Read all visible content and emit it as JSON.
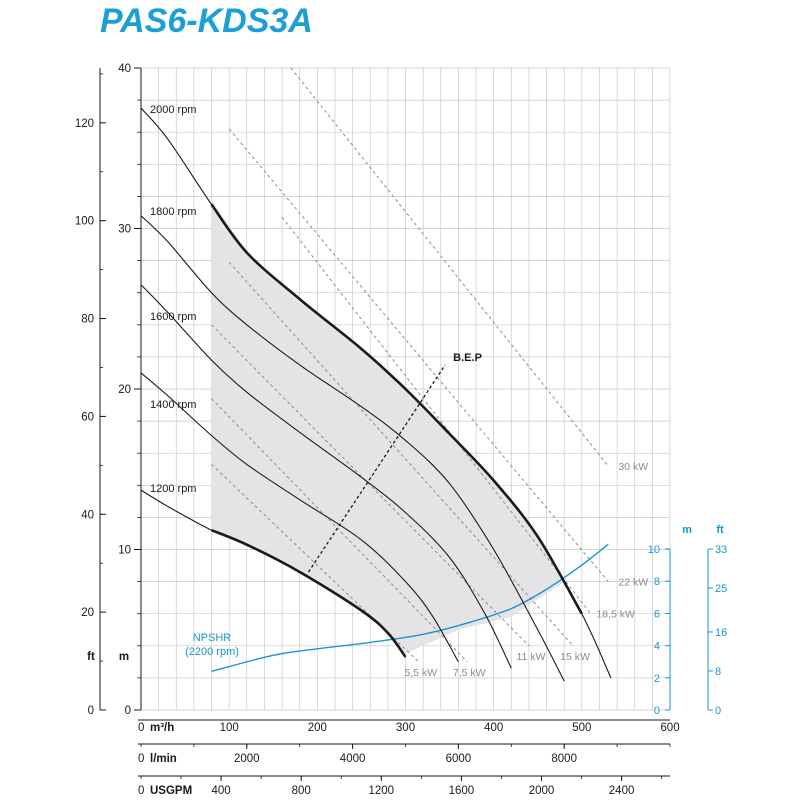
{
  "chart_data": {
    "type": "line",
    "title": "PAS6-KDS3A",
    "colors": {
      "title": "#1c9fd6",
      "npsh": "#1a95d2",
      "grid": "#c9c9c9",
      "region": "#e4e4e6",
      "power": "#8c8c8c",
      "curve": "#1a1a1a"
    },
    "x_axes": [
      {
        "unit": "m³/h",
        "ticks": [
          "0",
          "100",
          "200",
          "300",
          "400",
          "500",
          "600"
        ],
        "range": [
          0,
          600
        ]
      },
      {
        "unit": "l/min",
        "ticks": [
          "0",
          "2000",
          "4000",
          "6000",
          "8000"
        ],
        "range": [
          0,
          10000
        ]
      },
      {
        "unit": "USGPM",
        "ticks": [
          "0",
          "400",
          "800",
          "1200",
          "1600",
          "2000",
          "2400"
        ],
        "range": [
          0,
          2640
        ]
      }
    ],
    "y_axis_m": {
      "label": "m",
      "ticks": [
        "0",
        "10",
        "20",
        "30",
        "40"
      ],
      "range": [
        0,
        40
      ]
    },
    "y_axis_ft": {
      "label": "ft",
      "ticks": [
        "0",
        "20",
        "40",
        "60",
        "80",
        "100",
        "120"
      ],
      "range": [
        0,
        131.2
      ]
    },
    "npsh_axis_m": {
      "label": "m",
      "ticks": [
        "0",
        "2",
        "4",
        "6",
        "8",
        "10"
      ],
      "range": [
        0,
        10
      ]
    },
    "npsh_axis_ft": {
      "label": "ft",
      "ticks": [
        "0",
        "8",
        "16",
        "25",
        "33"
      ],
      "range": [
        0,
        33
      ]
    },
    "speed_curves": [
      {
        "name": "2000 rpm",
        "x": [
          0,
          30,
          80,
          120,
          180,
          250,
          300,
          350,
          400,
          450,
          500,
          533
        ],
        "y": [
          37.5,
          35.6,
          31.5,
          28.5,
          25.6,
          22.5,
          20.0,
          17.2,
          14.3,
          10.8,
          6.0,
          2.0
        ]
      },
      {
        "name": "1800 rpm",
        "x": [
          0,
          30,
          80,
          120,
          180,
          250,
          300,
          350,
          400,
          450,
          480
        ],
        "y": [
          30.8,
          29.2,
          26.0,
          24.0,
          21.5,
          18.9,
          16.8,
          14.1,
          10.0,
          5.0,
          1.8
        ]
      },
      {
        "name": "1600 rpm",
        "x": [
          0,
          30,
          80,
          120,
          180,
          250,
          300,
          350,
          390,
          420
        ],
        "y": [
          26.5,
          24.8,
          21.8,
          19.8,
          17.3,
          14.5,
          12.3,
          9.5,
          6.0,
          2.6
        ]
      },
      {
        "name": "1400 rpm",
        "x": [
          0,
          30,
          80,
          120,
          180,
          250,
          300,
          330,
          360
        ],
        "y": [
          21.0,
          19.6,
          17.1,
          15.3,
          13.1,
          10.6,
          8.0,
          5.9,
          3.0
        ]
      },
      {
        "name": "1200 rpm",
        "x": [
          0,
          30,
          80,
          120,
          180,
          250,
          280,
          300
        ],
        "y": [
          13.7,
          12.7,
          11.2,
          10.3,
          8.6,
          6.2,
          4.8,
          3.3
        ]
      }
    ],
    "power_lines": [
      {
        "label": "5,5 kW",
        "x": [
          80,
          315
        ],
        "y": [
          15.3,
          3.0
        ]
      },
      {
        "label": "7,5 kW",
        "x": [
          80,
          370
        ],
        "y": [
          19.4,
          3.0
        ]
      },
      {
        "label": "11 kW",
        "x": [
          80,
          440
        ],
        "y": [
          24.0,
          4.0
        ]
      },
      {
        "label": "15 kW",
        "x": [
          100,
          490
        ],
        "y": [
          27.9,
          4.0
        ]
      },
      {
        "label": "18,5 kW",
        "x": [
          160,
          510
        ],
        "y": [
          30.7,
          6.0
        ]
      },
      {
        "label": "22 kW",
        "x": [
          100,
          530
        ],
        "y": [
          36.2,
          8.0
        ]
      },
      {
        "label": "30 kW",
        "x": [
          170,
          530
        ],
        "y": [
          40.0,
          15.2
        ]
      }
    ],
    "operating_region": {
      "x": [
        80,
        120,
        180,
        250,
        300,
        350,
        400,
        450,
        490,
        480,
        420,
        360,
        300,
        280,
        250,
        180,
        120,
        80
      ],
      "y": [
        31.8,
        28.5,
        25.6,
        22.5,
        20.0,
        17.2,
        14.3,
        10.8,
        7.2,
        8.0,
        5.8,
        5.0,
        3.5,
        4.8,
        6.2,
        8.6,
        10.3,
        11.2
      ]
    },
    "bep": {
      "label": "B.E.P",
      "x": [
        190,
        345
      ],
      "y": [
        8.6,
        21.5
      ]
    },
    "npsh": {
      "label": "NPSHR\n(2200 rpm)",
      "x": [
        80,
        150,
        200,
        260,
        320,
        370,
        420,
        460,
        500,
        530
      ],
      "y": [
        2.4,
        3.4,
        3.8,
        4.2,
        4.7,
        5.4,
        6.3,
        7.5,
        9.0,
        10.3
      ]
    }
  }
}
